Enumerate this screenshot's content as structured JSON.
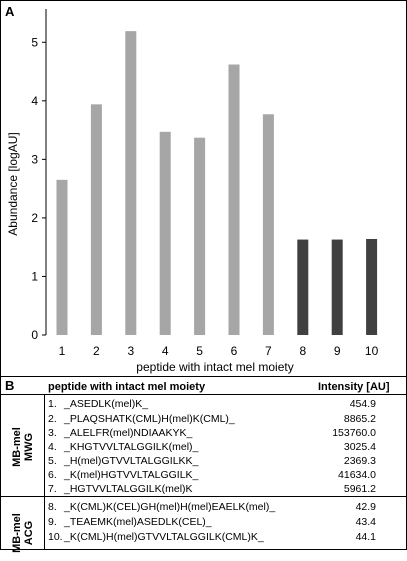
{
  "panel_a_label": "A",
  "panel_b_label": "B",
  "chart_data": {
    "type": "bar",
    "categories": [
      "1",
      "2",
      "3",
      "4",
      "5",
      "6",
      "7",
      "8",
      "9",
      "10"
    ],
    "values": [
      2.65,
      3.94,
      5.19,
      3.47,
      3.37,
      4.62,
      3.77,
      1.63,
      1.63,
      1.64
    ],
    "bar_colors": [
      "#a6a6a6",
      "#a6a6a6",
      "#a6a6a6",
      "#a6a6a6",
      "#a6a6a6",
      "#a6a6a6",
      "#a6a6a6",
      "#404040",
      "#404040",
      "#404040"
    ],
    "xlabel": "peptide with intact mel moiety",
    "ylabel": "Abundance [logAU]",
    "ylim": [
      0,
      5.5
    ],
    "yticks": [
      0,
      1,
      2,
      3,
      4,
      5
    ],
    "grid": false
  },
  "table": {
    "col_peptide": "peptide with intact mel moiety",
    "col_intensity": "Intensity [AU]",
    "groups": [
      {
        "label_line1": "MB-mel",
        "label_line2": "MWG",
        "rows": [
          {
            "num": "1.",
            "seq": "_ASEDLK(mel)K_",
            "intensity": "454.9"
          },
          {
            "num": "2.",
            "seq": "_PLAQSHATK(CML)H(mel)K(CML)_",
            "intensity": "8865.2"
          },
          {
            "num": "3.",
            "seq": "_ALELFR(mel)NDIAAKYK_",
            "intensity": "153760.0"
          },
          {
            "num": "4.",
            "seq": "_KHGTVVLTALGGILK(mel)_",
            "intensity": "3025.4"
          },
          {
            "num": "5.",
            "seq": "_H(mel)GTVVLTALGGILKK_",
            "intensity": "2369.3"
          },
          {
            "num": "6.",
            "seq": "_K(mel)HGTVVLTALGGILK_",
            "intensity": "41634.0"
          },
          {
            "num": "7.",
            "seq": "_HGTVVLTALGGILK(mel)K",
            "intensity": "5961.2"
          }
        ]
      },
      {
        "label_line1": "MB-mel",
        "label_line2": "ACG",
        "rows": [
          {
            "num": "8.",
            "seq": "_K(CML)K(CEL)GH(mel)H(mel)EAELK(mel)_",
            "intensity": "42.9"
          },
          {
            "num": "9.",
            "seq": "_TEAEMK(mel)ASEDLK(CEL)_",
            "intensity": "43.4"
          },
          {
            "num": "10.",
            "seq": "_K(CML)H(mel)GTVVLTALGGILK(CML)K_",
            "intensity": "44.1"
          }
        ]
      }
    ]
  }
}
